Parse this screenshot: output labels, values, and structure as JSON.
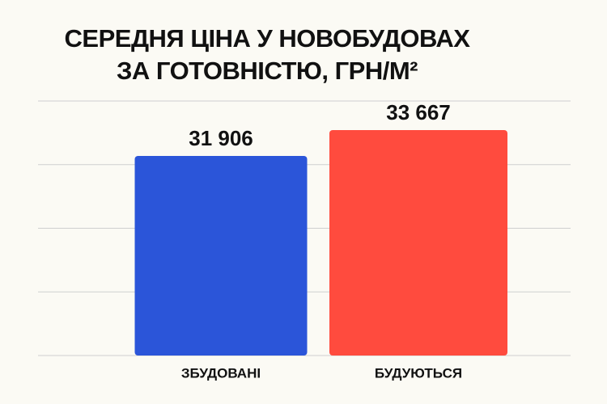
{
  "chart_data": {
    "type": "bar",
    "title": [
      "СЕРЕДНЯ ЦІНА У НОВОБУДОВАХ",
      "ЗА ГОТОВНІСТЮ, ГРН/М²"
    ],
    "categories": [
      "ЗБУДОВАНІ",
      "БУДУЮТЬСЯ"
    ],
    "values": [
      31906,
      33667
    ],
    "value_labels": [
      "31 906",
      "33 667"
    ],
    "colors": [
      "#2b55d9",
      "#ff4b3e"
    ],
    "ylim": [
      18300,
      35650
    ],
    "grid": true
  }
}
